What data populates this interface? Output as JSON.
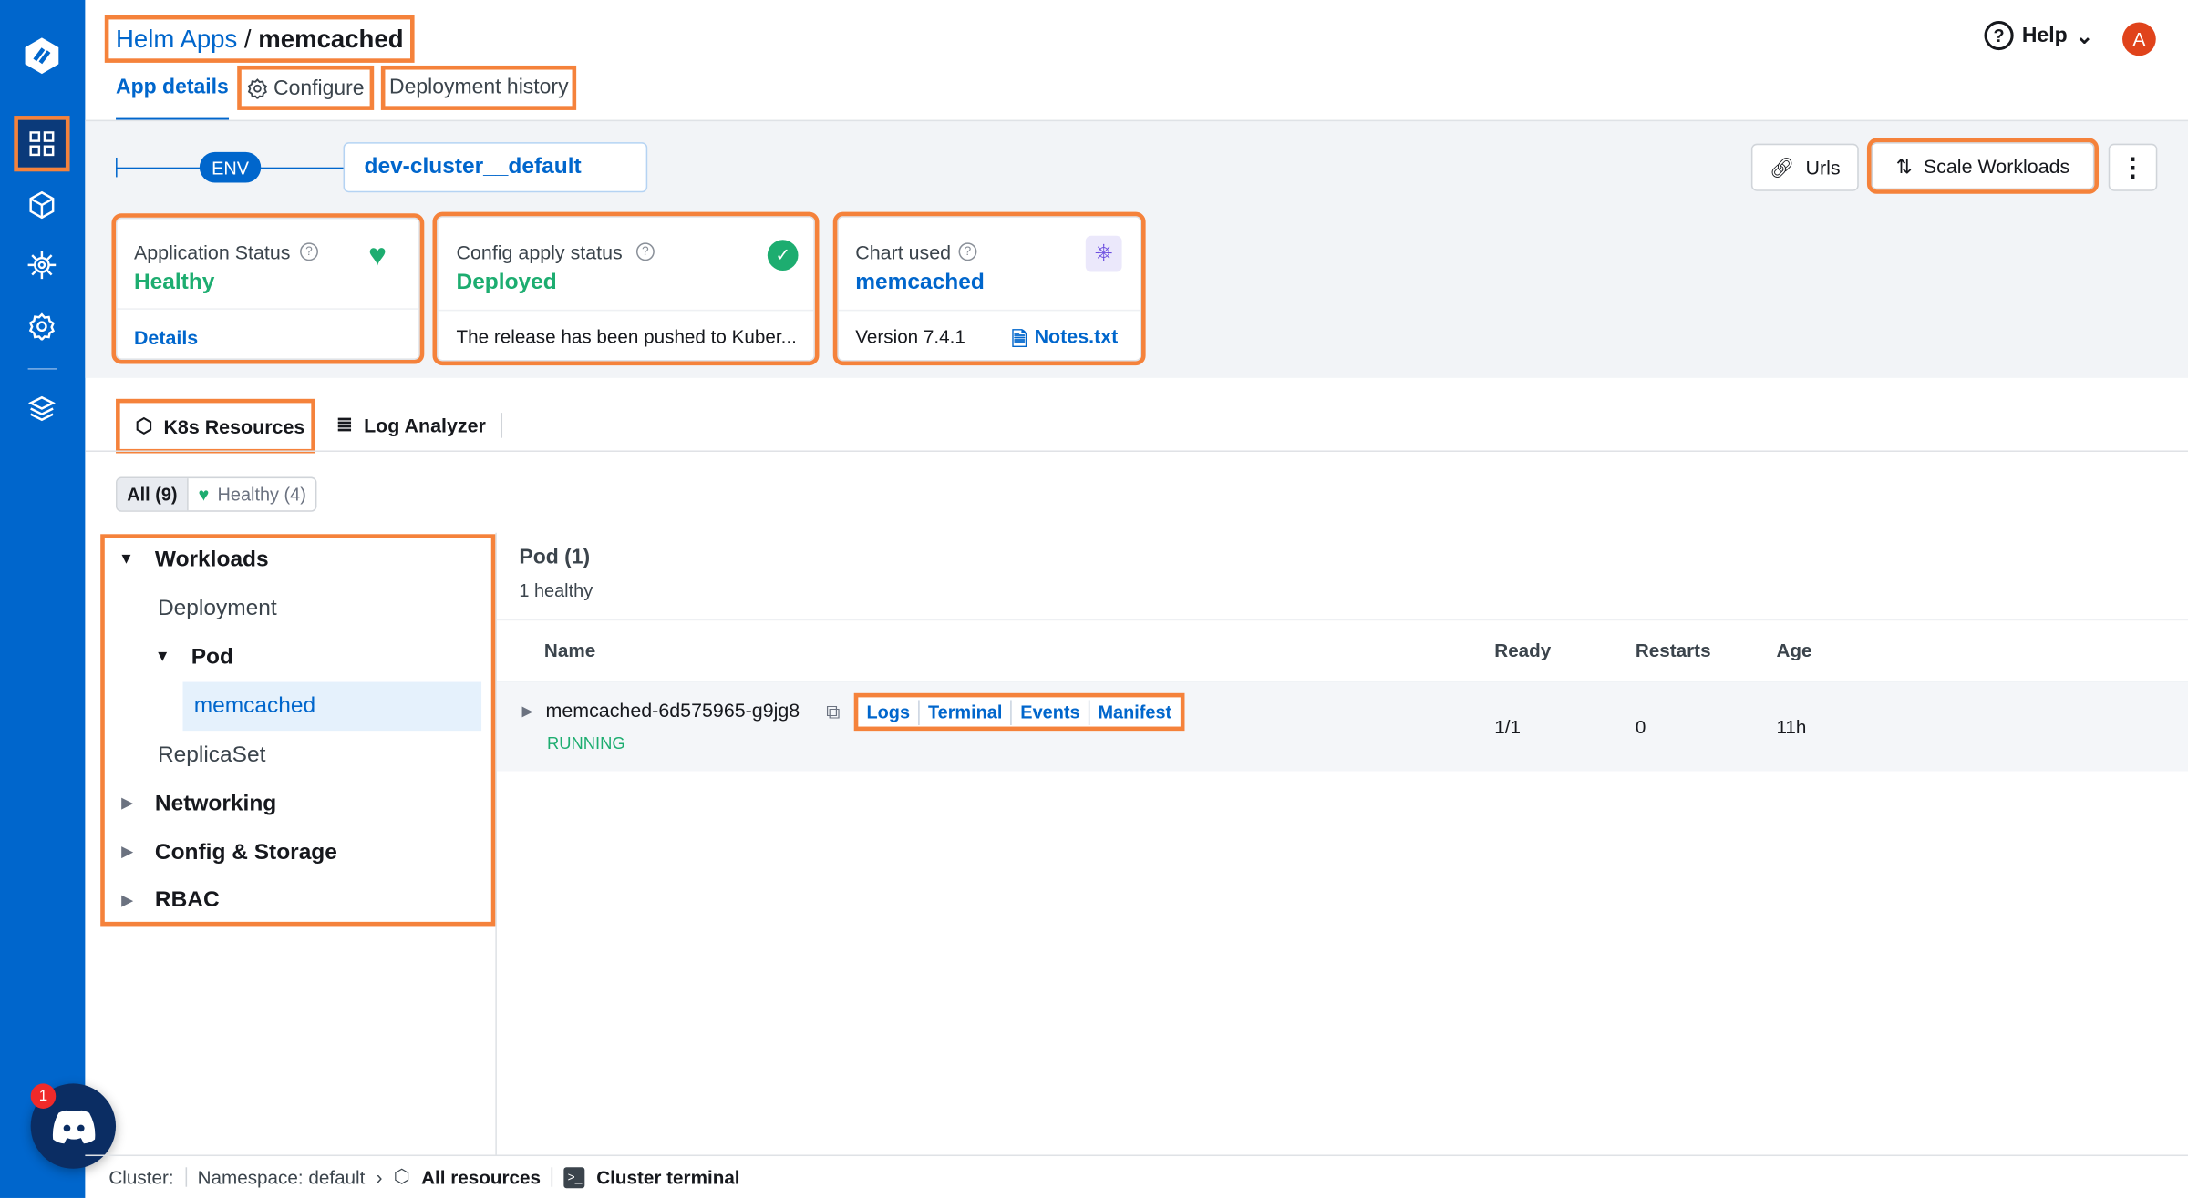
{
  "breadcrumb": {
    "parent": "Helm Apps",
    "separator": " / ",
    "current": "memcached"
  },
  "tabs": [
    {
      "label": "App details",
      "active": true
    },
    {
      "label": "Configure"
    },
    {
      "label": "Deployment history"
    }
  ],
  "header": {
    "help": "Help",
    "avatar": "A"
  },
  "env": {
    "badge": "ENV",
    "name": "dev-cluster__default"
  },
  "toolbar": {
    "urls": "Urls",
    "scale": "Scale Workloads"
  },
  "cards": {
    "app_status": {
      "title": "Application Status",
      "value": "Healthy",
      "link": "Details"
    },
    "config_status": {
      "title": "Config apply status",
      "value": "Deployed",
      "message": "The release has been pushed to Kuber..."
    },
    "chart": {
      "title": "Chart used",
      "value": "memcached",
      "version": "Version 7.4.1",
      "notes": "Notes.txt"
    }
  },
  "resource_tabs": [
    {
      "label": "K8s Resources",
      "active": true
    },
    {
      "label": "Log Analyzer"
    }
  ],
  "filters": {
    "all": "All (9)",
    "healthy": "Healthy (4)"
  },
  "tree": {
    "workloads": "Workloads",
    "deployment": "Deployment",
    "pod": "Pod",
    "memcached": "memcached",
    "replicaset": "ReplicaSet",
    "networking": "Networking",
    "config": "Config & Storage",
    "rbac": "RBAC"
  },
  "pods": {
    "title": "Pod (1)",
    "subtitle": "1 healthy",
    "columns": [
      "Name",
      "Ready",
      "Restarts",
      "Age"
    ],
    "rows": [
      {
        "name": "memcached-6d575965-g9jg8",
        "status": "RUNNING",
        "ready": "1/1",
        "restarts": "0",
        "age": "11h",
        "actions": [
          "Logs",
          "Terminal",
          "Events",
          "Manifest"
        ]
      }
    ]
  },
  "footer": {
    "cluster": "Cluster:",
    "namespace": "Namespace: default",
    "all_resources": "All resources",
    "terminal": "Cluster terminal"
  },
  "discord": {
    "badge": "1"
  },
  "colors": {
    "brand": "#0066cc",
    "healthy": "#1dad70",
    "highlight": "#f5823b"
  }
}
